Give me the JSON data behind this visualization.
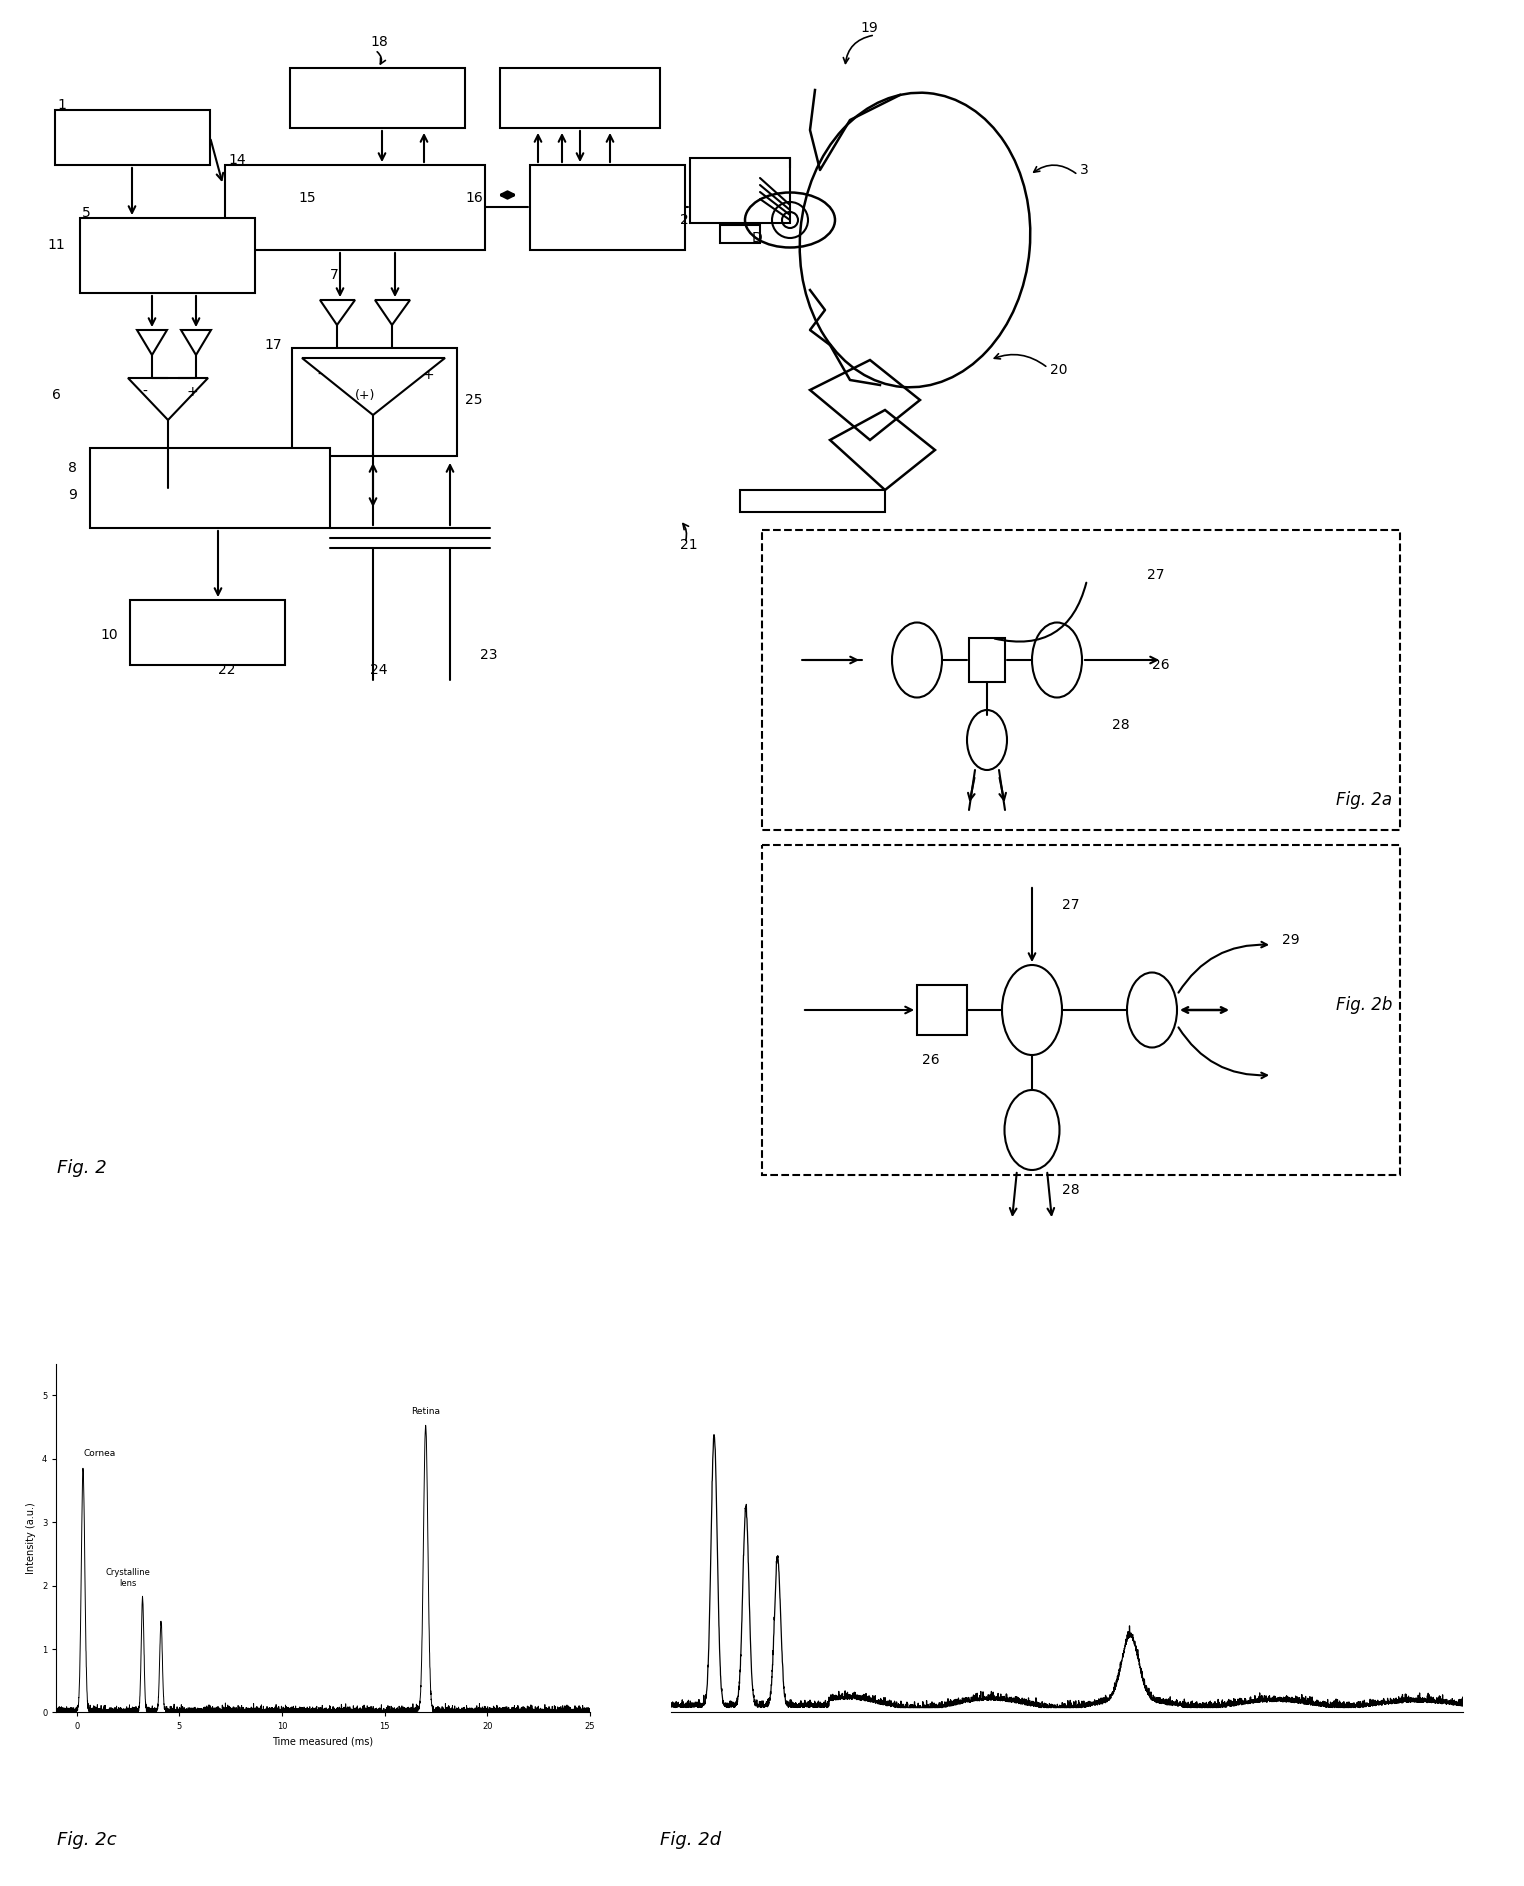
{
  "background_color": "#ffffff",
  "fig_width": 15.24,
  "fig_height": 18.86,
  "line_color": "#000000",
  "text_color": "#000000",
  "labels": {
    "fig2": "Fig. 2",
    "fig2a": "Fig. 2a",
    "fig2b": "Fig. 2b",
    "fig2c": "Fig. 2c",
    "fig2d": "Fig. 2d"
  }
}
